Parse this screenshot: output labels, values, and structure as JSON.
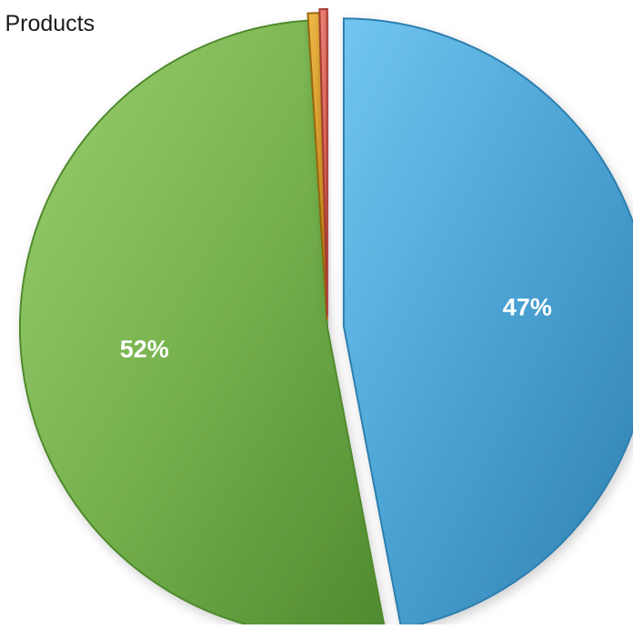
{
  "chart_data": {
    "type": "pie",
    "title": "k Products",
    "categories": [
      "Blue segment",
      "Green segment",
      "Orange segment",
      "Red segment"
    ],
    "values": [
      47,
      52,
      0.6,
      0.4
    ],
    "data_labels": [
      "47%",
      "52%",
      "",
      ""
    ],
    "colors": {
      "blue": "#4fa8d8",
      "blue_dark": "#2f7fae",
      "green": "#7cb852",
      "green_dark": "#4f8a2f",
      "orange": "#e3a12b",
      "red": "#dd5b4f"
    },
    "legend": "none",
    "style": "3d-exploded"
  }
}
